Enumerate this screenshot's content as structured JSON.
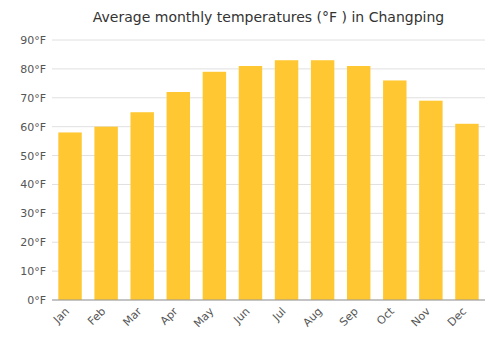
{
  "chart_data": {
    "type": "bar",
    "title": "Average monthly temperatures (°F ) in Changping",
    "categories": [
      "Jan",
      "Feb",
      "Mar",
      "Apr",
      "May",
      "Jun",
      "Jul",
      "Aug",
      "Sep",
      "Oct",
      "Nov",
      "Dec"
    ],
    "values": [
      58,
      60,
      65,
      72,
      79,
      81,
      83,
      83,
      81,
      76,
      69,
      61
    ],
    "color": "#FFC833",
    "ylim": [
      0,
      90
    ],
    "yticks": [
      {
        "value": 0,
        "label": "0°F"
      },
      {
        "value": 10,
        "label": "10°F"
      },
      {
        "value": 20,
        "label": "20°F"
      },
      {
        "value": 30,
        "label": "30°F"
      },
      {
        "value": 40,
        "label": "40°F"
      },
      {
        "value": 50,
        "label": "50°F"
      },
      {
        "value": 60,
        "label": "60°F"
      },
      {
        "value": 70,
        "label": "70°F"
      },
      {
        "value": 80,
        "label": "80°F"
      },
      {
        "value": 90,
        "label": "90°F"
      }
    ],
    "grid": true
  }
}
